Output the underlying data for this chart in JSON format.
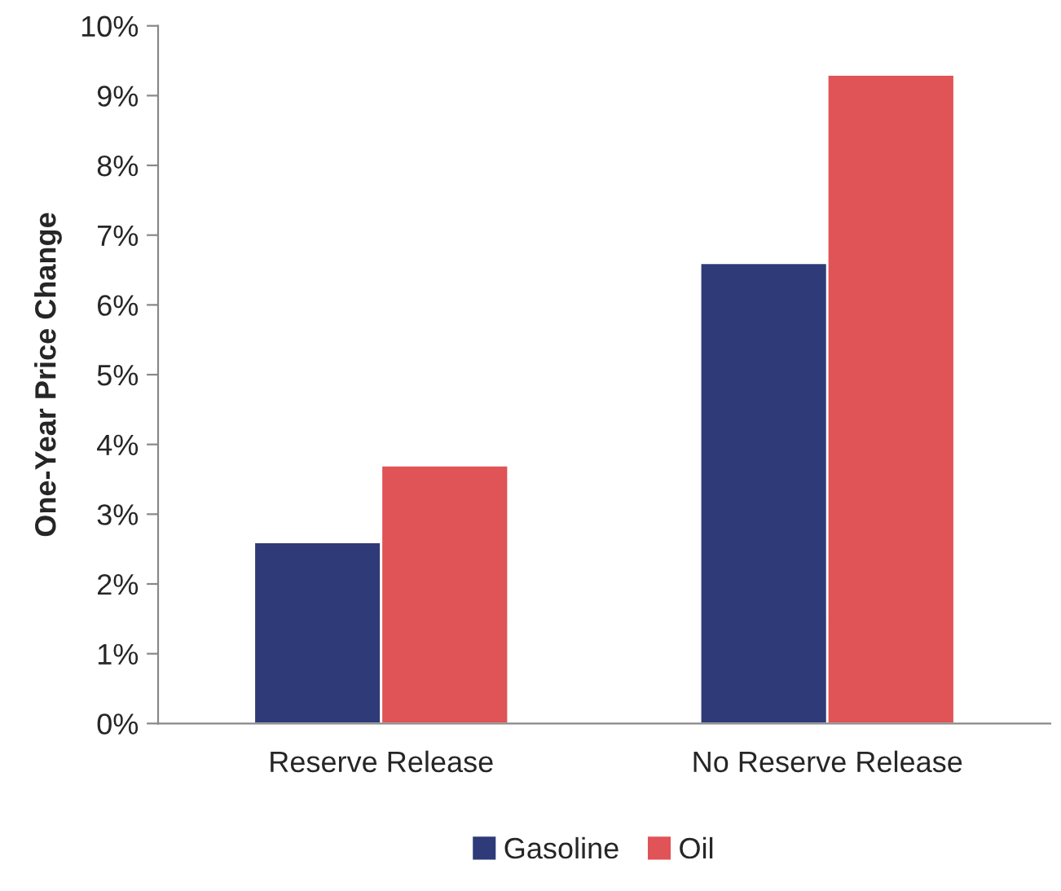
{
  "chart_data": {
    "type": "bar",
    "ylabel": "One-Year Price Change",
    "categories": [
      "Reserve Release",
      "No Reserve Release"
    ],
    "series": [
      {
        "name": "Gasoline",
        "color": "#2e3b78",
        "values": [
          2.6,
          6.6
        ]
      },
      {
        "name": "Oil",
        "color": "#e05356",
        "values": [
          3.7,
          9.3
        ]
      }
    ],
    "ylim": [
      0,
      10
    ],
    "yticks": [
      {
        "value": 0,
        "label": "0%"
      },
      {
        "value": 1,
        "label": "1%"
      },
      {
        "value": 2,
        "label": "2%"
      },
      {
        "value": 3,
        "label": "3%"
      },
      {
        "value": 4,
        "label": "4%"
      },
      {
        "value": 5,
        "label": "5%"
      },
      {
        "value": 6,
        "label": "6%"
      },
      {
        "value": 7,
        "label": "7%"
      },
      {
        "value": 8,
        "label": "8%"
      },
      {
        "value": 9,
        "label": "9%"
      },
      {
        "value": 10,
        "label": "10%"
      }
    ],
    "grid": false,
    "legend": "bottom"
  }
}
